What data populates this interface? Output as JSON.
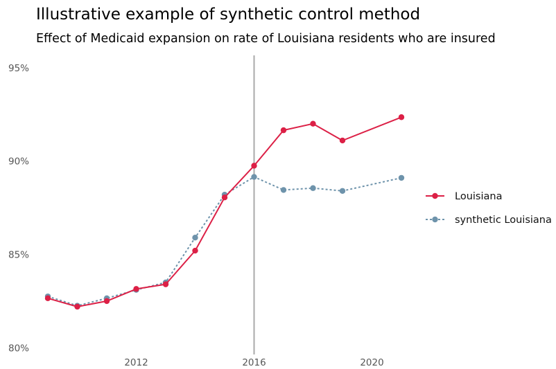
{
  "chart_data": {
    "type": "line",
    "title": "Illustrative example of synthetic control method",
    "subtitle": "Effect of Medicaid expansion on rate of Louisiana residents who are insured",
    "xlabel": "",
    "ylabel": "",
    "xlim": [
      2008.6,
      2021.4
    ],
    "ylim": [
      79.9,
      95.4
    ],
    "x_ticks": [
      2012,
      2016,
      2020
    ],
    "x_tick_labels": [
      "2012",
      "2016",
      "2020"
    ],
    "y_ticks": [
      80,
      85,
      90,
      95
    ],
    "y_tick_labels": [
      "80%",
      "85%",
      "90%",
      "95%"
    ],
    "grid": false,
    "legend_position": "right",
    "intervention_x": 2016,
    "x": [
      2009,
      2010,
      2011,
      2012,
      2013,
      2014,
      2015,
      2016,
      2017,
      2018,
      2019,
      2021
    ],
    "series": [
      {
        "name": "Louisiana",
        "color": "#dc2046",
        "line_style": "solid",
        "values": [
          82.65,
          82.2,
          82.5,
          83.15,
          83.4,
          85.2,
          88.05,
          89.75,
          91.65,
          92.0,
          91.1,
          92.35
        ]
      },
      {
        "name": "synthetic Louisiana",
        "color": "#6e93ab",
        "line_style": "dotted",
        "values": [
          82.75,
          82.25,
          82.65,
          83.1,
          83.5,
          85.9,
          88.2,
          89.15,
          88.45,
          88.55,
          88.4,
          89.1
        ]
      }
    ]
  }
}
